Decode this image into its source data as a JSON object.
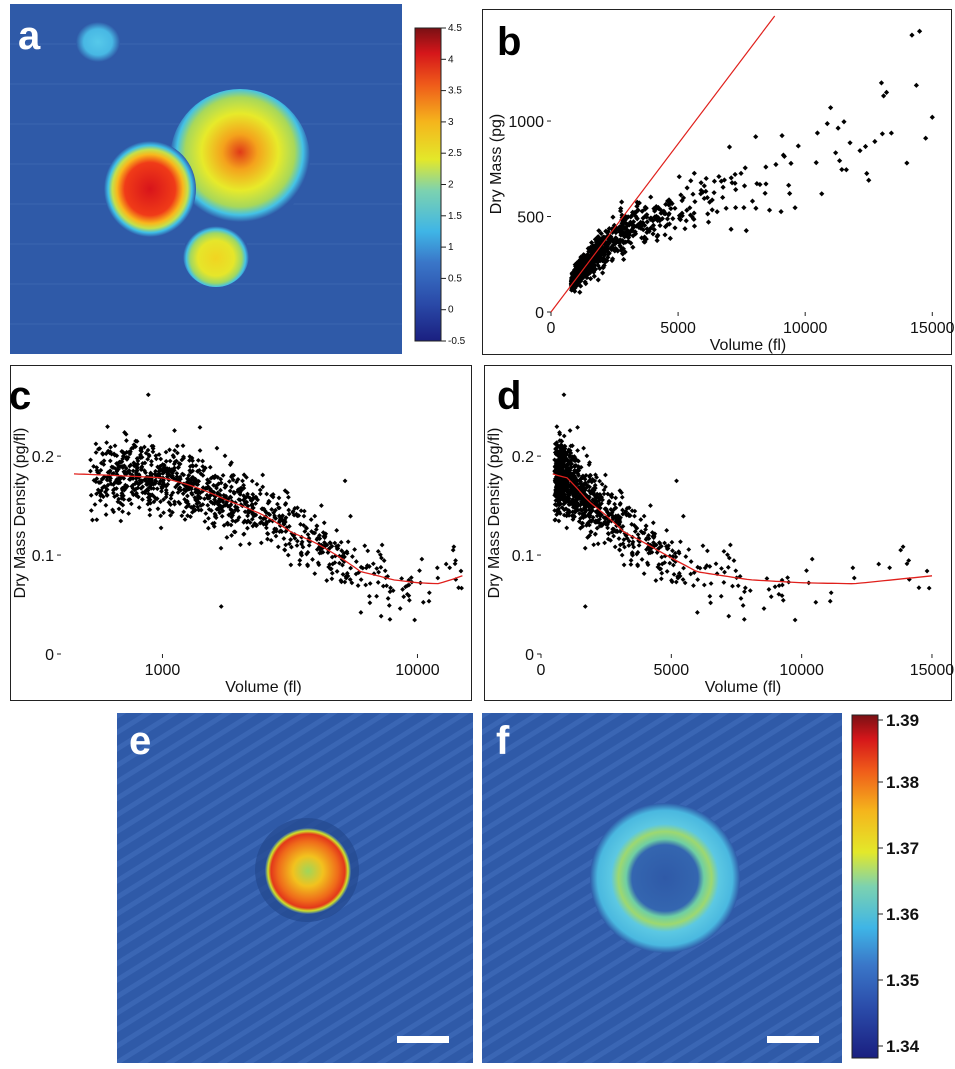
{
  "panels": {
    "a": {
      "letter": "a",
      "colorbar_ticks": [
        "4.5",
        "4",
        "3.5",
        "3",
        "2.5",
        "2",
        "1.5",
        "1",
        "0.5",
        "0",
        "-0.5"
      ]
    },
    "b": {
      "letter": "b"
    },
    "c": {
      "letter": "c"
    },
    "d": {
      "letter": "d"
    },
    "e": {
      "letter": "e"
    },
    "f": {
      "letter": "f",
      "colorbar_ticks": [
        "1.39",
        "1.38",
        "1.37",
        "1.36",
        "1.35",
        "1.34"
      ]
    }
  },
  "colors": {
    "points": "#000000",
    "fit": "#e0201c",
    "map_background": "#2f5aa8"
  },
  "chart_data": [
    {
      "type": "heatmap",
      "panel": "a",
      "title": "",
      "colorbar_range": [
        -0.5,
        4.5
      ],
      "colormap": "jet"
    },
    {
      "type": "scatter",
      "panel": "b",
      "title": "",
      "xlabel": "Volume (fl)",
      "ylabel": "Dry Mass (pg)",
      "xlim": [
        0,
        15500
      ],
      "ylim": [
        0,
        1550
      ],
      "xticks": [
        0,
        5000,
        10000,
        15000
      ],
      "yticks": [
        0,
        500,
        1000
      ],
      "line": {
        "x": [
          0,
          8800
        ],
        "y": [
          0,
          1550
        ]
      },
      "cloud": [
        {
          "x": 500,
          "y": 100,
          "sx": 0.35,
          "sy": 0.2
        },
        {
          "x": 1000,
          "y": 185,
          "sx": 0.25,
          "sy": 0.15
        },
        {
          "x": 2000,
          "y": 330,
          "sx": 0.25,
          "sy": 0.13
        },
        {
          "x": 3000,
          "y": 430,
          "sx": 0.25,
          "sy": 0.13
        },
        {
          "x": 4000,
          "y": 490,
          "sx": 0.2,
          "sy": 0.13
        },
        {
          "x": 5000,
          "y": 540,
          "sx": 0.2,
          "sy": 0.13
        },
        {
          "x": 6000,
          "y": 580,
          "sx": 0.2,
          "sy": 0.14
        },
        {
          "x": 8000,
          "y": 670,
          "sx": 0.2,
          "sy": 0.16
        },
        {
          "x": 10000,
          "y": 760,
          "sx": 0.2,
          "sy": 0.16
        },
        {
          "x": 12000,
          "y": 860,
          "sx": 0.15,
          "sy": 0.15
        },
        {
          "x": 14500,
          "y": 1000,
          "sx": 0.05,
          "sy": 0.15
        }
      ],
      "outliers": [
        [
          14200,
          1450
        ],
        [
          14500,
          1470
        ],
        [
          15000,
          1020
        ],
        [
          13000,
          1200
        ],
        [
          13200,
          1150
        ],
        [
          11000,
          1070
        ],
        [
          14000,
          780
        ],
        [
          12500,
          690
        ]
      ]
    },
    {
      "type": "scatter",
      "panel": "c",
      "title": "",
      "xlabel": "Volume (fl)",
      "ylabel": "Dry Mass Density (pg/fl)",
      "xscale": "log",
      "xlim": [
        400,
        15500
      ],
      "ylim": [
        0,
        0.285
      ],
      "xticks": [
        1000,
        10000
      ],
      "yticks": [
        0,
        0.1,
        0.2
      ],
      "fit": {
        "x": [
          450,
          700,
          1000,
          1300,
          1800,
          2500,
          3200,
          4000,
          5000,
          6000,
          8000,
          10000,
          12000,
          15000
        ],
        "y": [
          0.182,
          0.18,
          0.178,
          0.17,
          0.155,
          0.14,
          0.123,
          0.112,
          0.097,
          0.083,
          0.075,
          0.072,
          0.071,
          0.079
        ]
      },
      "outliers": [
        [
          880,
          0.262
        ],
        [
          1700,
          0.048
        ],
        [
          6000,
          0.042
        ],
        [
          7800,
          0.035
        ],
        [
          14500,
          0.067
        ],
        [
          13800,
          0.105
        ],
        [
          5200,
          0.175
        ],
        [
          4200,
          0.15
        ]
      ]
    },
    {
      "type": "scatter",
      "panel": "d",
      "title": "",
      "xlabel": "Volume (fl)",
      "ylabel": "Dry Mass Density (pg/fl)",
      "xlim": [
        0,
        15500
      ],
      "ylim": [
        0,
        0.285
      ],
      "xticks": [
        0,
        5000,
        10000,
        15000
      ],
      "yticks": [
        0,
        0.1,
        0.2
      ],
      "fit": {
        "x": [
          450,
          700,
          1000,
          1300,
          1800,
          2500,
          3200,
          4000,
          5000,
          6000,
          8000,
          10000,
          12000,
          15000
        ],
        "y": [
          0.182,
          0.18,
          0.178,
          0.17,
          0.155,
          0.14,
          0.123,
          0.112,
          0.097,
          0.083,
          0.075,
          0.072,
          0.071,
          0.079
        ]
      },
      "outliers": [
        [
          880,
          0.262
        ],
        [
          1700,
          0.048
        ],
        [
          6000,
          0.042
        ],
        [
          7800,
          0.035
        ],
        [
          14500,
          0.067
        ],
        [
          13800,
          0.105
        ],
        [
          5200,
          0.175
        ],
        [
          4200,
          0.15
        ]
      ]
    },
    {
      "type": "heatmap",
      "panel": "e",
      "title": ""
    },
    {
      "type": "heatmap",
      "panel": "f",
      "title": "",
      "colorbar_range": [
        1.335,
        1.39
      ],
      "colormap": "jet"
    }
  ]
}
